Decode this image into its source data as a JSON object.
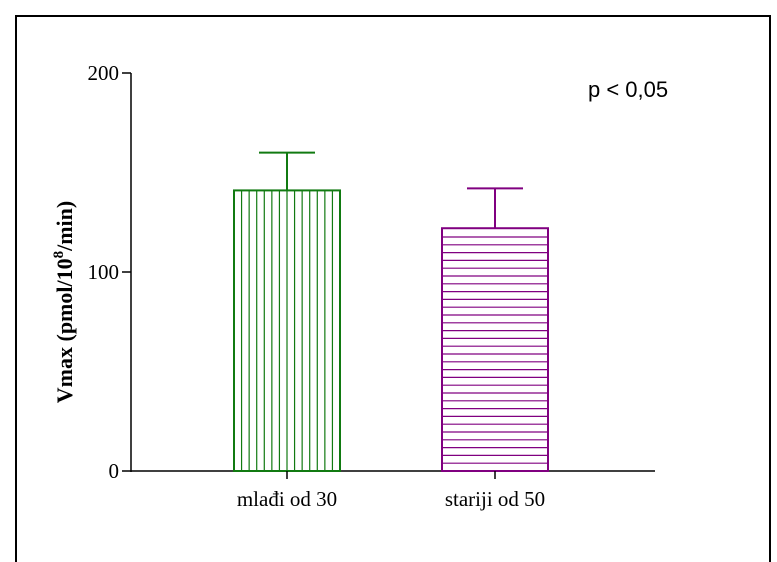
{
  "chart_data": {
    "type": "bar",
    "categories": [
      "mlađi od 30",
      "stariji od 50"
    ],
    "values": [
      141,
      122
    ],
    "errors": [
      19,
      20
    ],
    "ylabel_prefix": "Vmax (pmol/10",
    "ylabel_sup": "8",
    "ylabel_suffix": "/min)",
    "xlabel": "",
    "ylim": [
      0,
      200
    ],
    "yticks": [
      0,
      100,
      200
    ],
    "ytick_labels": [
      "0",
      "100",
      "200"
    ],
    "annotation": "p < 0,05",
    "bar_colors": [
      "#117a11",
      "#800080"
    ],
    "bar_patterns": [
      "vertical-lines",
      "horizontal-lines"
    ],
    "grid": false
  }
}
